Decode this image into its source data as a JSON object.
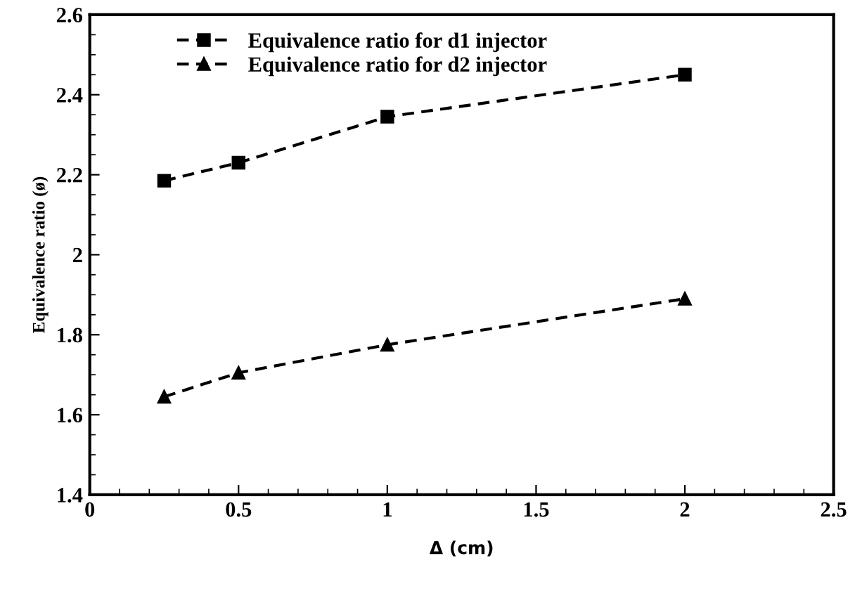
{
  "chart_data": {
    "type": "line",
    "xlabel": "Δ (cm)",
    "ylabel": "Equivalence ratio (ø)",
    "x": [
      0.25,
      0.5,
      1,
      2
    ],
    "series": [
      {
        "name": "Equivalence ratio for d1 injector",
        "color": "#000000",
        "marker": "square",
        "line_style": "dashed",
        "values": [
          2.185,
          2.23,
          2.345,
          2.45
        ]
      },
      {
        "name": "Equivalence ratio for d2 injector",
        "color": "#000000",
        "marker": "triangle",
        "line_style": "dashed",
        "values": [
          1.645,
          1.705,
          1.775,
          1.89
        ]
      }
    ],
    "xlim": [
      0,
      2.5
    ],
    "xticks": [
      0,
      0.5,
      1,
      1.5,
      2,
      2.5
    ],
    "ylim": [
      1.4,
      2.6
    ],
    "yticks": [
      1.4,
      1.6,
      1.8,
      2,
      2.2,
      2.4,
      2.6
    ],
    "grid": false,
    "legend": "top left"
  }
}
